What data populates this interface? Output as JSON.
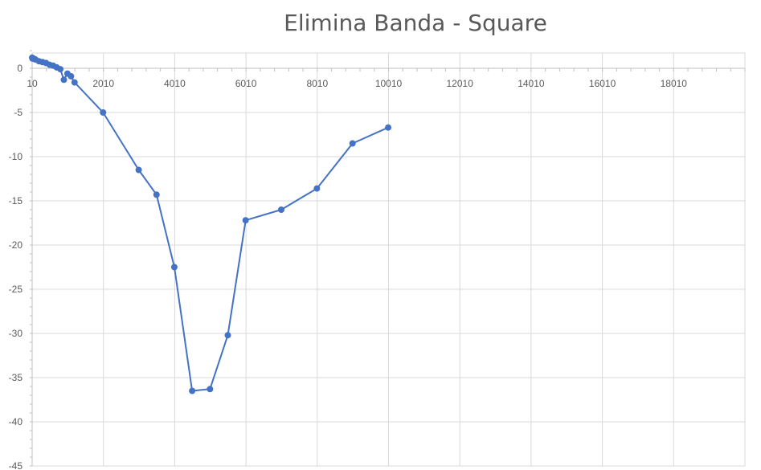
{
  "chart_data": {
    "type": "scatter",
    "title": "Elimina Banda - Square",
    "xlabel": "",
    "ylabel": "",
    "xlim": [
      10,
      20010
    ],
    "ylim": [
      -45,
      2
    ],
    "x_ticks": [
      10,
      2010,
      4010,
      6010,
      8010,
      10010,
      12010,
      14010,
      16010,
      18010
    ],
    "y_ticks": [
      0,
      -5,
      -10,
      -15,
      -20,
      -25,
      -30,
      -35,
      -40,
      -45
    ],
    "grid": true,
    "line_color": "#4472C4",
    "series": [
      {
        "x": [
          10,
          20,
          50,
          100,
          200,
          300,
          400,
          500,
          600,
          700,
          800,
          900,
          1000,
          1100,
          1200,
          2000,
          3000,
          3500,
          4000,
          4500,
          5000,
          5500,
          6000,
          7000,
          8000,
          9000,
          10000
        ],
        "y": [
          1.2,
          1.1,
          1.1,
          1.0,
          0.8,
          0.7,
          0.6,
          0.4,
          0.3,
          0.1,
          -0.1,
          -1.3,
          -0.6,
          -0.9,
          -1.6,
          -5.0,
          -11.5,
          -14.3,
          -22.5,
          -36.5,
          -36.3,
          -30.2,
          -17.2,
          -16.0,
          -13.6,
          -8.5,
          -6.7
        ]
      }
    ]
  }
}
